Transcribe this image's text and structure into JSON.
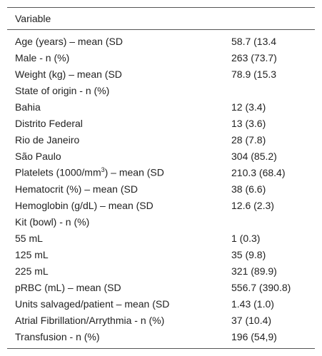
{
  "table": {
    "header": [
      "Variable"
    ],
    "rows": [
      [
        "Age (years) – mean (SD",
        "58.7 (13.4"
      ],
      [
        "Male - n (%)",
        "263 (73.7)"
      ],
      [
        "Weight (kg) – mean (SD",
        "78.9 (15.3"
      ],
      [
        "State of origin - n (%)"
      ],
      [
        "Bahia",
        "12 (3.4)"
      ],
      [
        "Distrito Federal",
        "13 (3.6)"
      ],
      [
        "Rio de Janeiro",
        "28 (7.8)"
      ],
      [
        "São Paulo",
        "304 (85.2)"
      ],
      [
        [
          "Platelets (1000/mm",
          "3",
          ") – mean (SD"
        ],
        "210.3 (68.4)"
      ],
      [
        "Hematocrit (%) – mean (SD",
        "38 (6.6)"
      ],
      [
        "Hemoglobin (g/dL) – mean (SD",
        "12.6 (2.3)"
      ],
      [
        "Kit (bowl) - n (%)"
      ],
      [
        "55 mL",
        "1 (0.3)"
      ],
      [
        "125 mL",
        "35 (9.8)"
      ],
      [
        "225 mL",
        "321 (89.9)"
      ],
      [
        "pRBC (mL) – mean (SD",
        "556.7 (390.8)"
      ],
      [
        "Units salvaged/patient – mean (SD",
        "1.43 (1.0)"
      ],
      [
        "Atrial Fibrillation/Arrythmia - n (%)",
        "37 (10.4)"
      ],
      [
        "Transfusion - n (%)",
        "196 (54,9)"
      ]
    ]
  }
}
